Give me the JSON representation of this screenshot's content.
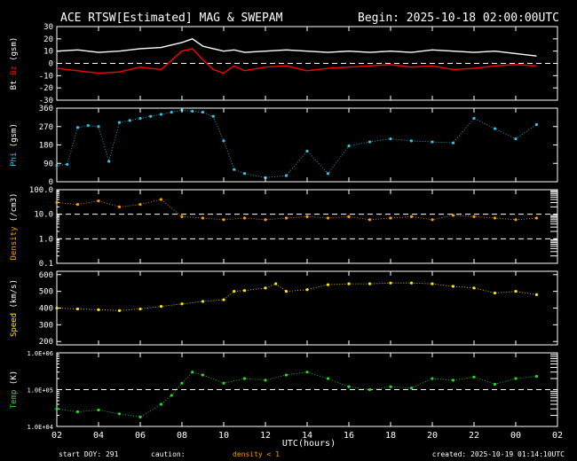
{
  "header": {
    "title": "ACE RTSW[Estimated] MAG & SWEPAM",
    "begin": "Begin: 2025-10-18 02:00:00UTC"
  },
  "footer": {
    "start_doy": "start DOY: 291",
    "caution": "caution:",
    "caution_note": "density < 1",
    "created": "created: 2025-10-19 01:14:10UTC"
  },
  "colors": {
    "bt": "#ffffff",
    "bz": "#ff0000",
    "phi": "#33c3e8",
    "density": "#ff9a00",
    "speed": "#ffe600",
    "temp": "#22dd22",
    "axis": "#ffffff",
    "caution": "#ff9a00"
  },
  "chart_data": [
    {
      "type": "line",
      "panel": "mag",
      "ylabel_parts": [
        "Bt",
        "Bz",
        "(gsm)"
      ],
      "yticks": [
        "30",
        "20",
        "10",
        "0",
        "-10",
        "-20",
        "-30"
      ],
      "ylim": [
        -30,
        30
      ],
      "reference_lines": [
        0
      ],
      "x": [
        2,
        3,
        4,
        5,
        6,
        7,
        8,
        8.5,
        9,
        9.5,
        10,
        10.5,
        11,
        12,
        13,
        14,
        15,
        16,
        17,
        18,
        19,
        20,
        21,
        22,
        23,
        24,
        25
      ],
      "series": [
        {
          "name": "Bt",
          "values": [
            10,
            11,
            9,
            10,
            12,
            13,
            17,
            20,
            14,
            12,
            10,
            11,
            9,
            10,
            11,
            10,
            9,
            10,
            9,
            10,
            9,
            11,
            10,
            9,
            10,
            8,
            6
          ]
        },
        {
          "name": "Bz",
          "values": [
            -4,
            -6,
            -8,
            -7,
            -3,
            -5,
            10,
            12,
            3,
            -5,
            -8,
            -2,
            -6,
            -3,
            -2,
            -6,
            -4,
            -3,
            -2,
            -1,
            -3,
            -2,
            -5,
            -4,
            -2,
            -1,
            -2
          ]
        }
      ]
    },
    {
      "type": "scatter",
      "panel": "phi",
      "ylabel_parts": [
        "Phi",
        "(gsm)"
      ],
      "yticks": [
        "360",
        "270",
        "180",
        "90",
        "0"
      ],
      "ylim": [
        0,
        360
      ],
      "x": [
        2,
        2.5,
        3,
        3.5,
        4,
        4.5,
        5,
        5.5,
        6,
        6.5,
        7,
        7.5,
        8,
        8.5,
        9,
        9.5,
        10,
        10.5,
        11,
        12,
        13,
        14,
        15,
        16,
        17,
        18,
        19,
        20,
        21,
        22,
        23,
        24,
        25
      ],
      "values": [
        80,
        85,
        265,
        275,
        270,
        100,
        290,
        300,
        310,
        320,
        330,
        340,
        350,
        345,
        340,
        320,
        200,
        60,
        40,
        20,
        30,
        150,
        40,
        175,
        195,
        210,
        200,
        195,
        190,
        310,
        260,
        210,
        280
      ]
    },
    {
      "type": "scatter",
      "panel": "density",
      "ylabel_parts": [
        "Density",
        "(/cm3)"
      ],
      "yticks": [
        "100.0",
        "10.0",
        "1.0",
        "0.1"
      ],
      "yscale": "log",
      "ylim": [
        0.1,
        100
      ],
      "reference_lines": [
        10,
        1
      ],
      "x": [
        2,
        3,
        4,
        5,
        6,
        7,
        8,
        9,
        10,
        11,
        12,
        13,
        14,
        15,
        16,
        17,
        18,
        19,
        20,
        21,
        22,
        23,
        24,
        25
      ],
      "values": [
        30,
        25,
        35,
        20,
        25,
        40,
        8,
        7,
        6,
        7,
        6,
        7,
        8,
        7,
        8,
        6,
        7,
        8,
        6,
        9,
        8,
        7,
        6,
        7
      ]
    },
    {
      "type": "scatter",
      "panel": "speed",
      "ylabel_parts": [
        "Speed",
        "(km/s)"
      ],
      "yticks": [
        "600",
        "500",
        "400",
        "300",
        "200"
      ],
      "ylim": [
        180,
        620
      ],
      "x": [
        2,
        3,
        4,
        5,
        6,
        7,
        8,
        9,
        10,
        10.5,
        11,
        12,
        12.5,
        13,
        14,
        15,
        16,
        17,
        18,
        19,
        20,
        21,
        22,
        23,
        24,
        25
      ],
      "values": [
        400,
        395,
        390,
        385,
        395,
        410,
        425,
        440,
        450,
        500,
        505,
        520,
        545,
        500,
        510,
        540,
        545,
        545,
        550,
        550,
        545,
        530,
        520,
        490,
        500,
        480
      ]
    },
    {
      "type": "scatter",
      "panel": "temp",
      "ylabel_parts": [
        "Temp",
        "(K)"
      ],
      "yticks": [
        "1.0E+06",
        "1.0E+05",
        "1.0E+04"
      ],
      "yscale": "log",
      "ylim": [
        10000,
        1000000
      ],
      "reference_lines": [
        100000
      ],
      "x": [
        2,
        3,
        4,
        5,
        6,
        7,
        7.5,
        8,
        8.5,
        9,
        10,
        11,
        12,
        13,
        14,
        15,
        16,
        17,
        18,
        19,
        20,
        21,
        22,
        23,
        24,
        25
      ],
      "values": [
        30000,
        25000,
        28000,
        22000,
        18000,
        40000,
        70000,
        150000,
        300000,
        250000,
        150000,
        200000,
        180000,
        250000,
        300000,
        200000,
        120000,
        100000,
        120000,
        110000,
        200000,
        180000,
        220000,
        140000,
        200000,
        230000
      ]
    }
  ],
  "xaxis": {
    "label": "UTC(hours)",
    "ticks": [
      "02",
      "04",
      "06",
      "08",
      "10",
      "12",
      "14",
      "16",
      "18",
      "20",
      "22",
      "00",
      "02"
    ]
  }
}
